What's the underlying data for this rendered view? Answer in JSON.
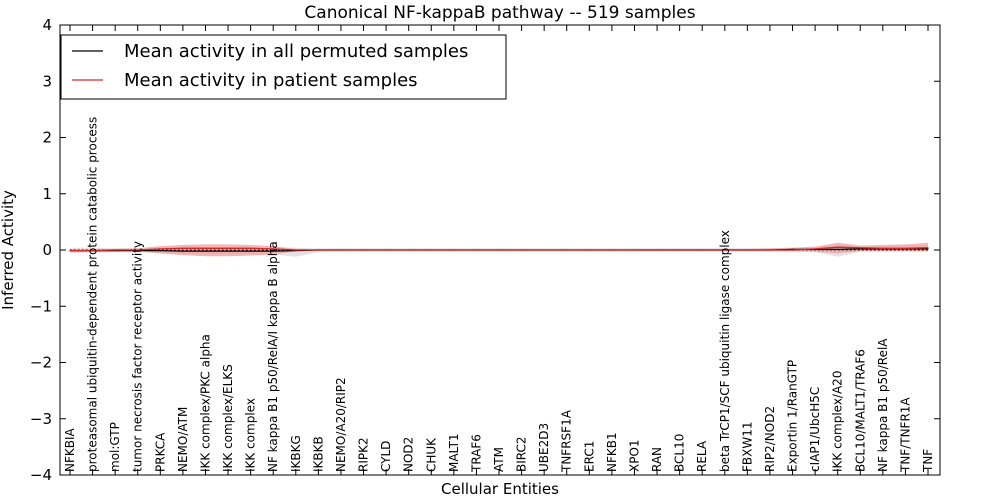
{
  "chart_data": {
    "type": "line",
    "title": "Canonical NF-kappaB pathway -- 519 samples",
    "xlabel": "Cellular Entities",
    "ylabel": "Inferred Activity",
    "ylim": [
      -4,
      4
    ],
    "yticks": [
      -4,
      -3,
      -2,
      -1,
      0,
      1,
      2,
      3,
      4
    ],
    "ytick_labels": [
      "−4",
      "−3",
      "−2",
      "−1",
      "0",
      "1",
      "2",
      "3",
      "4"
    ],
    "legend_position": "upper-left",
    "categories": [
      "NFKBIA",
      "proteasomal ubiquitin-dependent protein catabolic process",
      "mol:GTP",
      "tumor necrosis factor receptor activity",
      "PRKCA",
      "NEMO/ATM",
      "IKK complex/PKC alpha",
      "IKK complex/ELKS",
      "IKK complex",
      "NF kappa B1 p50/RelA/I kappa B alpha",
      "IKBKG",
      "IKBKB",
      "NEMO/A20/RIP2",
      "RIPK2",
      "CYLD",
      "NOD2",
      "CHUK",
      "MALT1",
      "TRAF6",
      "ATM",
      "BIRC2",
      "UBE2D3",
      "TNFRSF1A",
      "ERC1",
      "NFKB1",
      "XPO1",
      "RAN",
      "BCL10",
      "RELA",
      "beta TrCP1/SCF ubiquitin ligase complex",
      "FBXW11",
      "RIP2/NOD2",
      "Exportin 1/RanGTP",
      "cIAP1/UbcH5C",
      "IKK complex/A20",
      "BCL10/MALT1/TRAF6",
      "NF kappa B1 p50/RelA",
      "TNF/TNFR1A",
      "TNF"
    ],
    "series": [
      {
        "name": "Mean activity in all permuted samples",
        "color": "#000000",
        "band_color": "#d9d9d9",
        "values": [
          -0.01,
          -0.01,
          -0.01,
          -0.01,
          -0.01,
          -0.02,
          -0.02,
          -0.02,
          -0.02,
          -0.02,
          -0.01,
          0.0,
          0.0,
          0.0,
          0.0,
          0.0,
          0.0,
          0.0,
          0.0,
          0.0,
          0.0,
          0.0,
          0.0,
          0.0,
          0.0,
          0.0,
          0.0,
          0.0,
          0.0,
          0.0,
          0.0,
          0.0,
          0.01,
          0.01,
          0.01,
          0.02,
          0.02,
          0.02,
          0.02
        ],
        "lower": [
          -0.06,
          -0.05,
          -0.04,
          -0.04,
          -0.06,
          -0.08,
          -0.08,
          -0.08,
          -0.08,
          -0.08,
          -0.12,
          -0.04,
          -0.03,
          -0.03,
          -0.03,
          -0.03,
          -0.03,
          -0.03,
          -0.03,
          -0.03,
          -0.03,
          -0.03,
          -0.03,
          -0.03,
          -0.03,
          -0.03,
          -0.03,
          -0.03,
          -0.03,
          -0.03,
          -0.03,
          -0.03,
          -0.03,
          -0.04,
          -0.12,
          -0.03,
          -0.03,
          -0.03,
          -0.03
        ],
        "upper": [
          0.04,
          0.04,
          0.03,
          0.03,
          0.05,
          0.06,
          0.06,
          0.06,
          0.06,
          0.05,
          0.04,
          0.03,
          0.03,
          0.03,
          0.03,
          0.03,
          0.03,
          0.03,
          0.03,
          0.03,
          0.03,
          0.03,
          0.03,
          0.03,
          0.03,
          0.03,
          0.03,
          0.03,
          0.03,
          0.03,
          0.03,
          0.03,
          0.04,
          0.05,
          0.09,
          0.06,
          0.07,
          0.08,
          0.09
        ]
      },
      {
        "name": "Mean activity in patient samples",
        "color": "#d62728",
        "band_color": "#ef9a9a",
        "values": [
          -0.01,
          -0.01,
          0.0,
          0.0,
          0.02,
          0.03,
          0.03,
          0.03,
          0.03,
          0.02,
          0.0,
          0.0,
          0.0,
          0.0,
          0.0,
          0.0,
          0.0,
          0.0,
          0.0,
          0.0,
          0.0,
          0.0,
          0.0,
          0.0,
          0.0,
          0.0,
          0.0,
          0.0,
          0.0,
          0.0,
          0.0,
          0.0,
          0.0,
          0.02,
          0.05,
          0.04,
          0.03,
          0.03,
          0.04
        ],
        "lower": [
          -0.03,
          -0.03,
          -0.02,
          -0.02,
          -0.06,
          -0.09,
          -0.11,
          -0.11,
          -0.1,
          -0.08,
          -0.02,
          -0.01,
          -0.01,
          -0.01,
          -0.01,
          -0.01,
          -0.01,
          -0.01,
          -0.01,
          -0.01,
          -0.01,
          -0.01,
          -0.01,
          -0.01,
          -0.01,
          -0.01,
          -0.01,
          -0.01,
          -0.01,
          -0.01,
          -0.01,
          -0.01,
          -0.02,
          -0.03,
          -0.06,
          -0.02,
          -0.02,
          -0.02,
          -0.02
        ],
        "upper": [
          0.01,
          0.01,
          0.02,
          0.03,
          0.07,
          0.09,
          0.1,
          0.1,
          0.09,
          0.07,
          0.02,
          0.01,
          0.01,
          0.01,
          0.01,
          0.01,
          0.01,
          0.01,
          0.01,
          0.01,
          0.01,
          0.01,
          0.01,
          0.01,
          0.01,
          0.01,
          0.02,
          0.02,
          0.02,
          0.02,
          0.02,
          0.03,
          0.04,
          0.06,
          0.13,
          0.08,
          0.09,
          0.1,
          0.13
        ]
      }
    ]
  }
}
